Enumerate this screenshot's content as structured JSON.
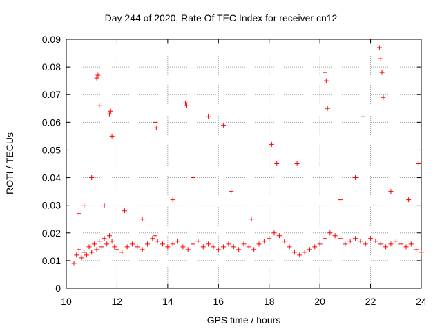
{
  "chart_data": {
    "type": "scatter",
    "title": "Day 244 of 2020, Rate Of TEC Index for receiver cn12",
    "xlabel": "GPS time / hours",
    "ylabel": "ROTI / TECUs",
    "xlim": [
      10,
      24
    ],
    "ylim": [
      0,
      0.09
    ],
    "xticks": [
      "10",
      "12",
      "14",
      "16",
      "18",
      "20",
      "22",
      "24"
    ],
    "yticks": [
      "0",
      "0.01",
      "0.02",
      "0.03",
      "0.04",
      "0.05",
      "0.06",
      "0.07",
      "0.08",
      "0.09"
    ],
    "grid": true,
    "legend": "none",
    "marker": "+",
    "series": [
      {
        "color": "#ff0000",
        "x": [
          10.3,
          10.4,
          10.5,
          10.6,
          10.7,
          10.8,
          10.9,
          11.0,
          11.1,
          11.2,
          11.3,
          11.4,
          11.5,
          11.6,
          11.7,
          11.8,
          11.9,
          12.0,
          12.2,
          12.4,
          12.6,
          12.8,
          13.0,
          13.2,
          13.4,
          13.5,
          13.6,
          13.8,
          14.0,
          14.2,
          14.4,
          14.6,
          14.8,
          15.0,
          15.2,
          15.4,
          15.6,
          15.8,
          16.0,
          16.2,
          16.4,
          16.6,
          16.8,
          17.0,
          17.2,
          17.4,
          17.6,
          17.8,
          18.0,
          18.2,
          18.4,
          18.6,
          18.8,
          19.0,
          19.2,
          19.4,
          19.6,
          19.8,
          20.0,
          20.2,
          20.4,
          20.6,
          20.8,
          21.0,
          21.2,
          21.4,
          21.6,
          21.8,
          22.0,
          22.2,
          22.4,
          22.6,
          22.8,
          23.0,
          23.2,
          23.4,
          23.6,
          23.8,
          24.0,
          11.2,
          11.25,
          11.3,
          11.7,
          11.75,
          11.8,
          13.5,
          13.55,
          14.7,
          14.75,
          15.6,
          16.2,
          20.2,
          20.25,
          20.3,
          21.7,
          22.35,
          22.4,
          22.45,
          22.5,
          10.5,
          10.7,
          11.0,
          11.5,
          12.3,
          13.0,
          14.2,
          15.0,
          16.5,
          17.3,
          18.1,
          18.3,
          19.1,
          20.8,
          21.4,
          22.8,
          23.5,
          23.9
        ],
        "y": [
          0.009,
          0.012,
          0.014,
          0.011,
          0.013,
          0.012,
          0.015,
          0.013,
          0.016,
          0.014,
          0.017,
          0.015,
          0.018,
          0.016,
          0.019,
          0.017,
          0.015,
          0.014,
          0.013,
          0.015,
          0.016,
          0.015,
          0.014,
          0.016,
          0.018,
          0.019,
          0.017,
          0.016,
          0.015,
          0.016,
          0.017,
          0.015,
          0.014,
          0.016,
          0.017,
          0.015,
          0.016,
          0.015,
          0.014,
          0.015,
          0.016,
          0.015,
          0.014,
          0.016,
          0.015,
          0.014,
          0.016,
          0.017,
          0.018,
          0.02,
          0.019,
          0.017,
          0.015,
          0.013,
          0.012,
          0.013,
          0.014,
          0.015,
          0.016,
          0.018,
          0.02,
          0.019,
          0.018,
          0.016,
          0.017,
          0.018,
          0.017,
          0.016,
          0.018,
          0.017,
          0.016,
          0.015,
          0.016,
          0.017,
          0.016,
          0.015,
          0.016,
          0.014,
          0.013,
          0.076,
          0.077,
          0.066,
          0.063,
          0.064,
          0.055,
          0.06,
          0.058,
          0.067,
          0.066,
          0.062,
          0.059,
          0.078,
          0.075,
          0.065,
          0.062,
          0.087,
          0.083,
          0.078,
          0.069,
          0.027,
          0.03,
          0.04,
          0.03,
          0.028,
          0.025,
          0.032,
          0.04,
          0.035,
          0.025,
          0.052,
          0.045,
          0.045,
          0.032,
          0.04,
          0.035,
          0.032,
          0.045
        ]
      }
    ]
  }
}
